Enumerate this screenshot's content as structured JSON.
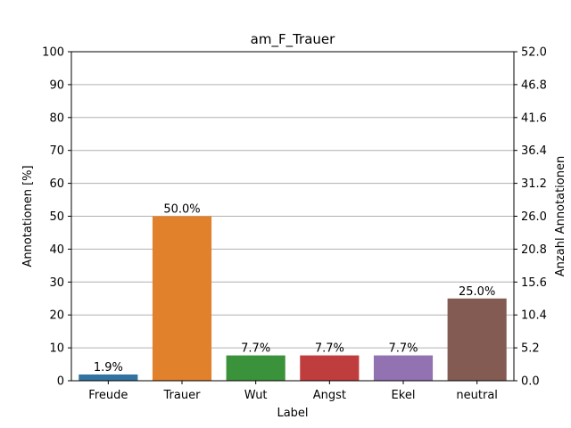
{
  "chart_data": {
    "type": "bar",
    "title": "am_F_Trauer",
    "xlabel": "Label",
    "ylabel": "Annotationen [%]",
    "ylabel_right": "Anzahl Annotationen",
    "categories": [
      "Freude",
      "Trauer",
      "Wut",
      "Angst",
      "Ekel",
      "neutral"
    ],
    "values": [
      1.9,
      50.0,
      7.7,
      7.7,
      7.7,
      25.0
    ],
    "value_labels": [
      "1.9%",
      "50.0%",
      "7.7%",
      "7.7%",
      "7.7%",
      "25.0%"
    ],
    "colors": [
      "#3274a1",
      "#e1812c",
      "#3a923a",
      "#c03d3e",
      "#9372b2",
      "#845b53"
    ],
    "ylim": [
      0,
      100
    ],
    "yticks": [
      0,
      10,
      20,
      30,
      40,
      50,
      60,
      70,
      80,
      90,
      100
    ],
    "ylim_right": [
      0,
      52
    ],
    "yticks_right": [
      "0.0",
      "5.2",
      "10.4",
      "15.6",
      "20.8",
      "26.0",
      "31.2",
      "36.4",
      "41.6",
      "46.8",
      "52.0"
    ],
    "grid": true
  }
}
